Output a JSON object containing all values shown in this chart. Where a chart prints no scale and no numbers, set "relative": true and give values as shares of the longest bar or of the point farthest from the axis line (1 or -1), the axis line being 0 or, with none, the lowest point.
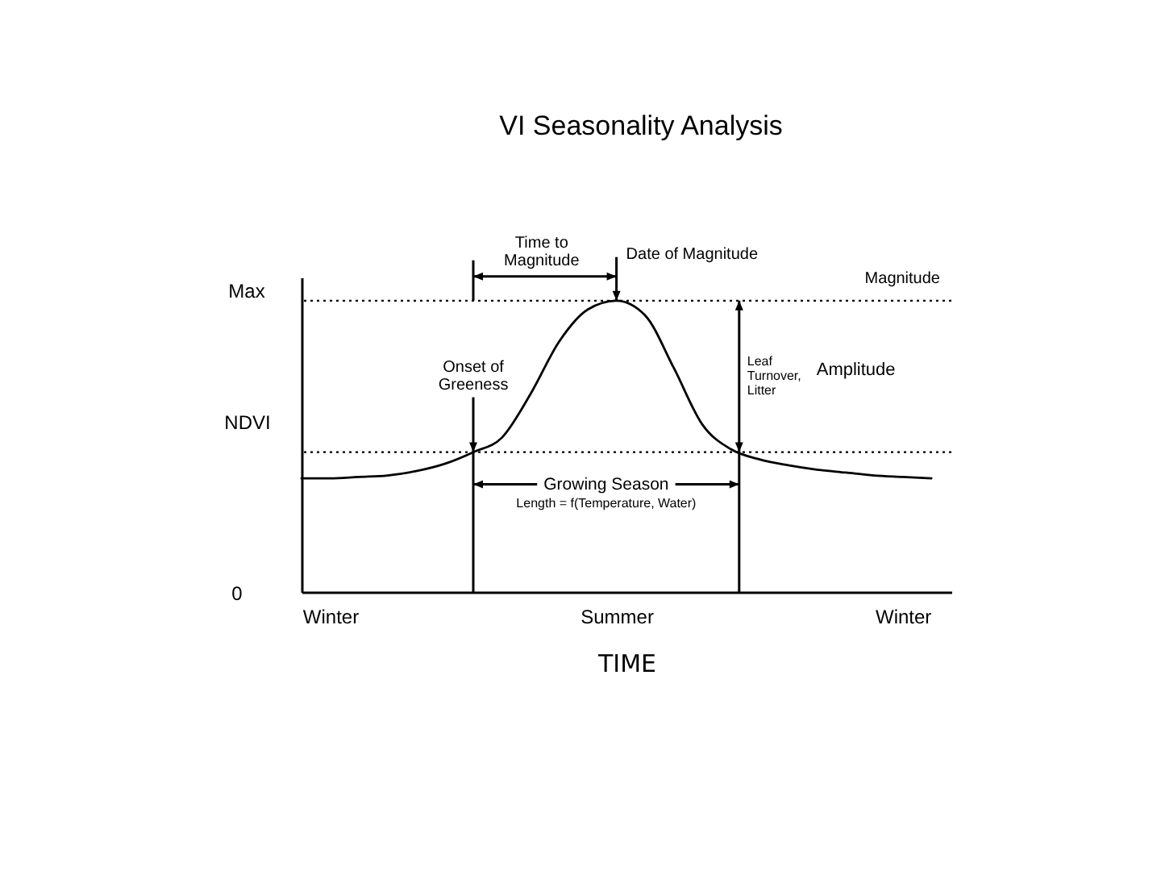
{
  "chart_data": {
    "type": "line",
    "title": "VI Seasonality Analysis",
    "xlabel": "TIME",
    "ylabel": "NDVI",
    "relative": true,
    "categories": [
      null,
      "Winter",
      null,
      null,
      null,
      null,
      null,
      null,
      null,
      null,
      null,
      "Summer",
      null,
      null,
      null,
      null,
      null,
      null,
      null,
      null,
      null,
      "Winter",
      null
    ],
    "values": [
      0.39,
      0.39,
      0.395,
      0.4,
      0.415,
      0.44,
      0.48,
      0.53,
      0.68,
      0.86,
      0.97,
      1,
      0.95,
      0.77,
      0.575,
      0.49,
      0.455,
      0.435,
      0.42,
      0.41,
      0.4,
      0.395,
      0.39
    ],
    "color": "#000000",
    "ref_lines": [
      {
        "axis": "y",
        "value": 1,
        "label": "Magnitude",
        "line_style": "dotted"
      },
      {
        "axis": "y",
        "value": 0.48,
        "line_style": "dotted"
      }
    ],
    "annotations": [
      "Max",
      "0",
      "Time to Magnitude",
      "Date of Magnitude",
      "Onset of Greeness",
      "Leaf Turnover, Litter",
      "Amplitude",
      "Growing Season",
      "Length = f(Temperature, Water)"
    ]
  }
}
